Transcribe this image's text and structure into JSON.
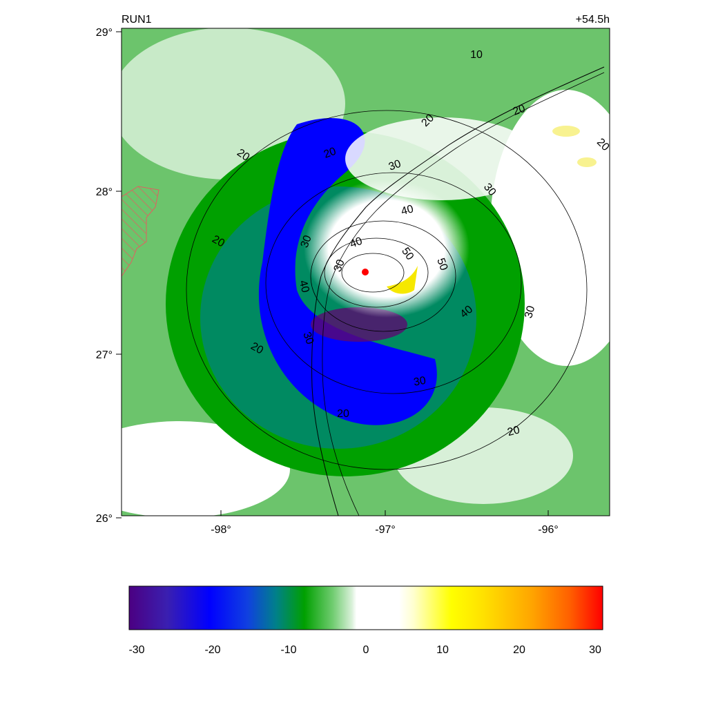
{
  "map": {
    "title_left": "RUN1",
    "title_right": "+54.5h",
    "lat_labels": [
      "29°",
      "28°",
      "27°",
      "26°"
    ],
    "lon_labels": [
      "-98°",
      "-97°",
      "-96°"
    ],
    "center_marker_color": "#ff0000",
    "contour_labels": [
      {
        "text": "10"
      },
      {
        "text": "20"
      },
      {
        "text": "20"
      },
      {
        "text": "20"
      },
      {
        "text": "20"
      },
      {
        "text": "20"
      },
      {
        "text": "20"
      },
      {
        "text": "20"
      },
      {
        "text": "20"
      },
      {
        "text": "20"
      },
      {
        "text": "30"
      },
      {
        "text": "30"
      },
      {
        "text": "30"
      },
      {
        "text": "30"
      },
      {
        "text": "30"
      },
      {
        "text": "30"
      },
      {
        "text": "30"
      },
      {
        "text": "40"
      },
      {
        "text": "40"
      },
      {
        "text": "40"
      },
      {
        "text": "40"
      },
      {
        "text": "50"
      },
      {
        "text": "50"
      }
    ]
  },
  "colorbar": {
    "tick_labels": [
      "-30",
      "-20",
      "-10",
      "0",
      "10",
      "20",
      "30"
    ],
    "colors": {
      "min": "#4b0082",
      "blue": "#0000ff",
      "green": "#00a000",
      "white": "#ffffff",
      "yellow": "#ffff00",
      "orange": "#ffa500",
      "max": "#ff0000"
    }
  }
}
